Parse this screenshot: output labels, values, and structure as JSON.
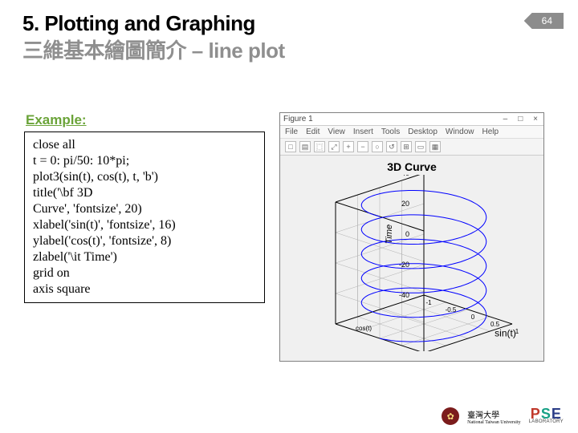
{
  "header": {
    "line1": "5. Plotting and Graphing",
    "line2_cn": "三維基本繪圖簡介",
    "line2_dash": "–",
    "line2_en": "line plot",
    "page": "64"
  },
  "left": {
    "example_label": "Example:",
    "code_lines": [
      "close all",
      "t = 0: pi/50: 10*pi;",
      "plot3(sin(t), cos(t), t, 'b')",
      "title('\\bf 3D",
      "Curve', 'fontsize', 20)",
      "xlabel('sin(t)', 'fontsize', 16)",
      "ylabel('cos(t)', 'fontsize', 8)",
      "zlabel('\\it Time')",
      "grid on",
      "axis square"
    ]
  },
  "figure": {
    "window_title": "Figure 1",
    "menus": [
      "File",
      "Edit",
      "View",
      "Insert",
      "Tools",
      "Desktop",
      "Window",
      "Help"
    ],
    "toolbar_icons": [
      "□",
      "▤",
      "⿴",
      "⤢",
      "+",
      "−",
      "○",
      "↺",
      "⊞",
      "▭",
      "▦"
    ],
    "title": "3D Curve",
    "xlabel": "sin(t)",
    "ylabel": "cos(t)",
    "zlabel": "Time",
    "zticks": [
      "-40",
      "-20",
      "0",
      "20",
      "40"
    ],
    "xyticks": [
      "-1",
      "-0.5",
      "0",
      "0.5",
      "1"
    ],
    "line_color": "#0000ff",
    "grid_color": "#b0b0b0",
    "axis_color": "#000000",
    "bg_color": "#f0f0f0",
    "title_fontsize": 14,
    "label_fontsize": 10
  },
  "footer": {
    "uni_cn": "臺灣大學",
    "uni_en": "National Taiwan University",
    "pse": {
      "p": "P",
      "s": "S",
      "e": "E",
      "sub": "LABORATORY"
    }
  }
}
